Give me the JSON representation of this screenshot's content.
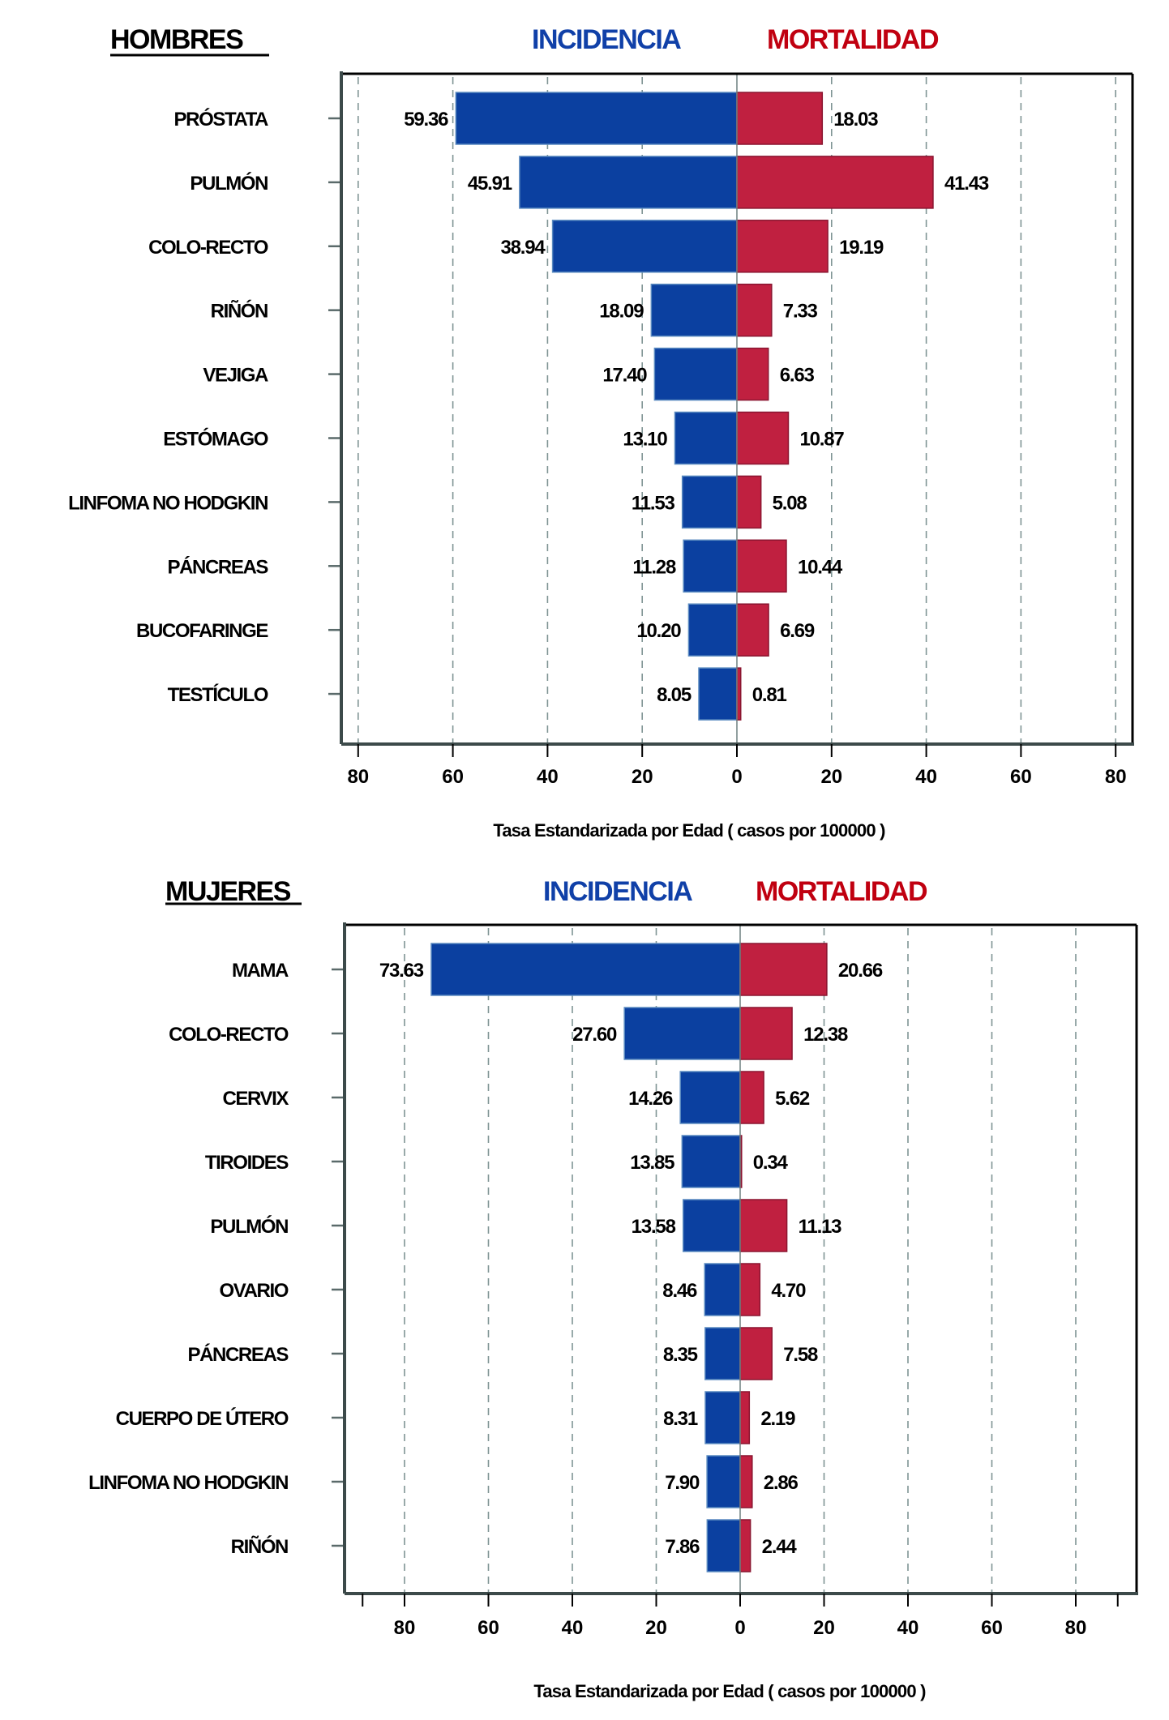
{
  "legend": {
    "incidence_label": "INCIDENCIA",
    "mortality_label": "MORTALIDAD",
    "incidence_color": "#0b40a0",
    "mortality_color": "#c02040",
    "incidence_title_color": "#1040a8",
    "mortality_title_color": "#c00010"
  },
  "chart_data": [
    {
      "type": "bar",
      "orientation": "horizontal-diverging",
      "title": "HOMBRES",
      "xlabel": "Tasa Estandarizada por Edad ( casos por 100000 )",
      "ylabel": "",
      "xlim": [
        -84,
        84
      ],
      "xticks": [
        -80,
        -60,
        -40,
        -20,
        0,
        20,
        40,
        60,
        80
      ],
      "xtick_labels": [
        "80",
        "60",
        "40",
        "20",
        "0",
        "20",
        "40",
        "60",
        "80"
      ],
      "grid": "vertical-dashed",
      "legend": "top-center",
      "categories": [
        "PRÓSTATA",
        "PULMÓN",
        "COLO-RECTO",
        "RIÑÓN",
        "VEJIGA",
        "ESTÓMAGO",
        "LINFOMA NO HODGKIN",
        "PÁNCREAS",
        "BUCOFARINGE",
        "TESTÍCULO"
      ],
      "series": [
        {
          "name": "INCIDENCIA",
          "side": "left",
          "values": [
            59.36,
            45.91,
            38.94,
            18.09,
            17.4,
            13.1,
            11.53,
            11.28,
            10.2,
            8.05
          ],
          "labels": [
            "59.36",
            "45.91",
            "38.94",
            "18.09",
            "17.40",
            "13.10",
            "11.53",
            "11.28",
            "10.20",
            "8.05"
          ]
        },
        {
          "name": "MORTALIDAD",
          "side": "right",
          "values": [
            18.03,
            41.43,
            19.19,
            7.33,
            6.63,
            10.87,
            5.08,
            10.44,
            6.69,
            0.81
          ],
          "labels": [
            "18.03",
            "41.43",
            "19.19",
            "7.33",
            "6.63",
            "10.87",
            "5.08",
            "10.44",
            "6.69",
            "0.81"
          ]
        }
      ]
    },
    {
      "type": "bar",
      "orientation": "horizontal-diverging",
      "title": "MUJERES",
      "xlabel": "Tasa Estandarizada por Edad ( casos por 100000 )",
      "ylabel": "",
      "xlim": [
        -94,
        94
      ],
      "xticks": [
        -90,
        -80,
        -60,
        -40,
        -20,
        0,
        20,
        40,
        60,
        80,
        90
      ],
      "xtick_labels": [
        "",
        "80",
        "60",
        "40",
        "20",
        "0",
        "20",
        "40",
        "60",
        "80",
        ""
      ],
      "grid": "vertical-dashed",
      "legend": "top-center",
      "categories": [
        "MAMA",
        "COLO-RECTO",
        "CERVIX",
        "TIROIDES",
        "PULMÓN",
        "OVARIO",
        "PÁNCREAS",
        "CUERPO DE ÚTERO",
        "LINFOMA NO HODGKIN",
        "RIÑÓN"
      ],
      "series": [
        {
          "name": "INCIDENCIA",
          "side": "left",
          "values": [
            73.63,
            27.6,
            14.26,
            13.85,
            13.58,
            8.46,
            8.35,
            8.31,
            7.9,
            7.86
          ],
          "labels": [
            "73.63",
            "27.60",
            "14.26",
            "13.85",
            "13.58",
            "8.46",
            "8.35",
            "8.31",
            "7.90",
            "7.86"
          ]
        },
        {
          "name": "MORTALIDAD",
          "side": "right",
          "values": [
            20.66,
            12.38,
            5.62,
            0.34,
            11.13,
            4.7,
            7.58,
            2.19,
            2.86,
            2.44
          ],
          "labels": [
            "20.66",
            "12.38",
            "5.62",
            "0.34",
            "11.13",
            "4.70",
            "7.58",
            "2.19",
            "2.86",
            "2.44"
          ]
        }
      ]
    }
  ]
}
